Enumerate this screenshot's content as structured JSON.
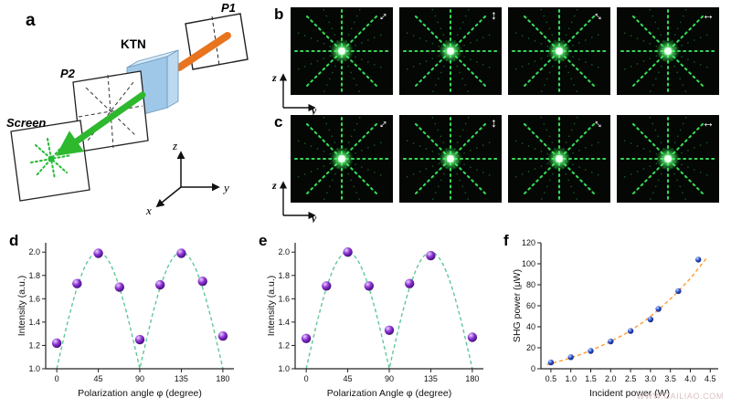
{
  "panel_a": {
    "label": "a",
    "p1": "P1",
    "p2": "P2",
    "ktn": "KTN",
    "screen": "Screen",
    "axis_x": "x",
    "axis_y": "y",
    "axis_z": "z"
  },
  "panel_b": {
    "label": "b",
    "axis_vertical": "z",
    "axis_horizontal": "y",
    "images": [
      {
        "polarization": "diagonal-45",
        "arrow": "↔"
      },
      {
        "polarization": "vertical",
        "arrow": "↕"
      },
      {
        "polarization": "diagonal-135",
        "arrow": "↔"
      },
      {
        "polarization": "horizontal",
        "arrow": "↔"
      }
    ]
  },
  "panel_c": {
    "label": "c",
    "axis_vertical": "z",
    "axis_horizontal": "y",
    "images": [
      {
        "polarization": "diagonal-45",
        "arrow": "↔"
      },
      {
        "polarization": "vertical",
        "arrow": "↕"
      },
      {
        "polarization": "diagonal-135",
        "arrow": "↔"
      },
      {
        "polarization": "horizontal",
        "arrow": "↔"
      }
    ]
  },
  "panel_d_label": "d",
  "panel_e_label": "e",
  "panel_f_label": "f",
  "watermark": "WWW.CAILIAO.COM",
  "colors": {
    "pattern_green": "#35d957",
    "beam_green": "#2eb82e",
    "beam_orange": "#e8741f",
    "ktn_blue": "#9fc8e8",
    "fit_green": "#5fc896",
    "fit_orange": "#ff9a2e",
    "marker_purple": "#8a2fd0",
    "marker_blue": "#2a50c8"
  },
  "chart_data": [
    {
      "id": "d",
      "type": "scatter",
      "title": "",
      "xlabel": "Polarization angle φ (degree)",
      "ylabel": "Intensity (a.u.)",
      "xlim": [
        -12,
        192
      ],
      "ylim": [
        1.0,
        2.08
      ],
      "xticks": [
        0,
        45,
        90,
        135,
        180
      ],
      "yticks": [
        1.0,
        1.2,
        1.4,
        1.6,
        1.8,
        2.0
      ],
      "xtick_decimals": 0,
      "ytick_decimals": 1,
      "points": [
        [
          0,
          1.22
        ],
        [
          22,
          1.73
        ],
        [
          45,
          1.99
        ],
        [
          68,
          1.7
        ],
        [
          90,
          1.25
        ],
        [
          112,
          1.72
        ],
        [
          135,
          1.99
        ],
        [
          158,
          1.75
        ],
        [
          180,
          1.28
        ]
      ],
      "fit": {
        "kind": "abs-sin",
        "offset": 1.0,
        "amplitude": 1.0,
        "half_period_deg": 90,
        "range": [
          0,
          180
        ]
      },
      "curve_color": "#5fc896",
      "point_color": "#8a2fd0",
      "point_hi": "#e9d2ff",
      "point_lo": "#3a0d73",
      "marker_radius": 5.2
    },
    {
      "id": "e",
      "type": "scatter",
      "title": "",
      "xlabel": "Polarization Angle φ (degree)",
      "ylabel": "Intensity (a.u.)",
      "xlim": [
        -12,
        192
      ],
      "ylim": [
        1.0,
        2.08
      ],
      "xticks": [
        0,
        45,
        90,
        135,
        180
      ],
      "yticks": [
        1.0,
        1.2,
        1.4,
        1.6,
        1.8,
        2.0
      ],
      "xtick_decimals": 0,
      "ytick_decimals": 1,
      "points": [
        [
          0,
          1.26
        ],
        [
          22,
          1.71
        ],
        [
          45,
          2.0
        ],
        [
          68,
          1.71
        ],
        [
          90,
          1.33
        ],
        [
          112,
          1.73
        ],
        [
          135,
          1.97
        ],
        [
          180,
          1.27
        ]
      ],
      "fit": {
        "kind": "abs-sin",
        "offset": 1.0,
        "amplitude": 1.0,
        "half_period_deg": 90,
        "range": [
          0,
          180
        ]
      },
      "curve_color": "#5fc896",
      "point_color": "#8a2fd0",
      "point_hi": "#e9d2ff",
      "point_lo": "#3a0d73",
      "marker_radius": 5.2
    },
    {
      "id": "f",
      "type": "scatter",
      "title": "",
      "xlabel": "Incident power (W)",
      "ylabel": "SHG power (μW)",
      "xlim": [
        0.25,
        4.7
      ],
      "ylim": [
        0,
        120
      ],
      "xticks": [
        0.5,
        1.0,
        1.5,
        2.0,
        2.5,
        3.0,
        3.5,
        4.0,
        4.5
      ],
      "yticks": [
        0,
        20,
        40,
        60,
        80,
        100,
        120
      ],
      "xtick_decimals": 1,
      "ytick_decimals": 0,
      "points": [
        [
          0.5,
          6
        ],
        [
          1.0,
          11
        ],
        [
          1.5,
          17
        ],
        [
          2.0,
          26
        ],
        [
          2.5,
          36
        ],
        [
          3.0,
          47
        ],
        [
          3.2,
          57
        ],
        [
          3.7,
          74
        ],
        [
          4.2,
          104
        ]
      ],
      "fit": {
        "kind": "points",
        "points": [
          [
            0.4,
            4
          ],
          [
            0.8,
            8
          ],
          [
            1.2,
            13
          ],
          [
            1.6,
            19
          ],
          [
            2.0,
            26
          ],
          [
            2.4,
            34
          ],
          [
            2.8,
            44
          ],
          [
            3.2,
            56
          ],
          [
            3.6,
            70
          ],
          [
            4.0,
            86
          ],
          [
            4.4,
            105
          ]
        ]
      },
      "curve_color": "#ff9a2e",
      "point_color": "#2a50c8",
      "point_hi": "#cfdcff",
      "point_lo": "#13207a",
      "marker_radius": 3.2
    }
  ]
}
